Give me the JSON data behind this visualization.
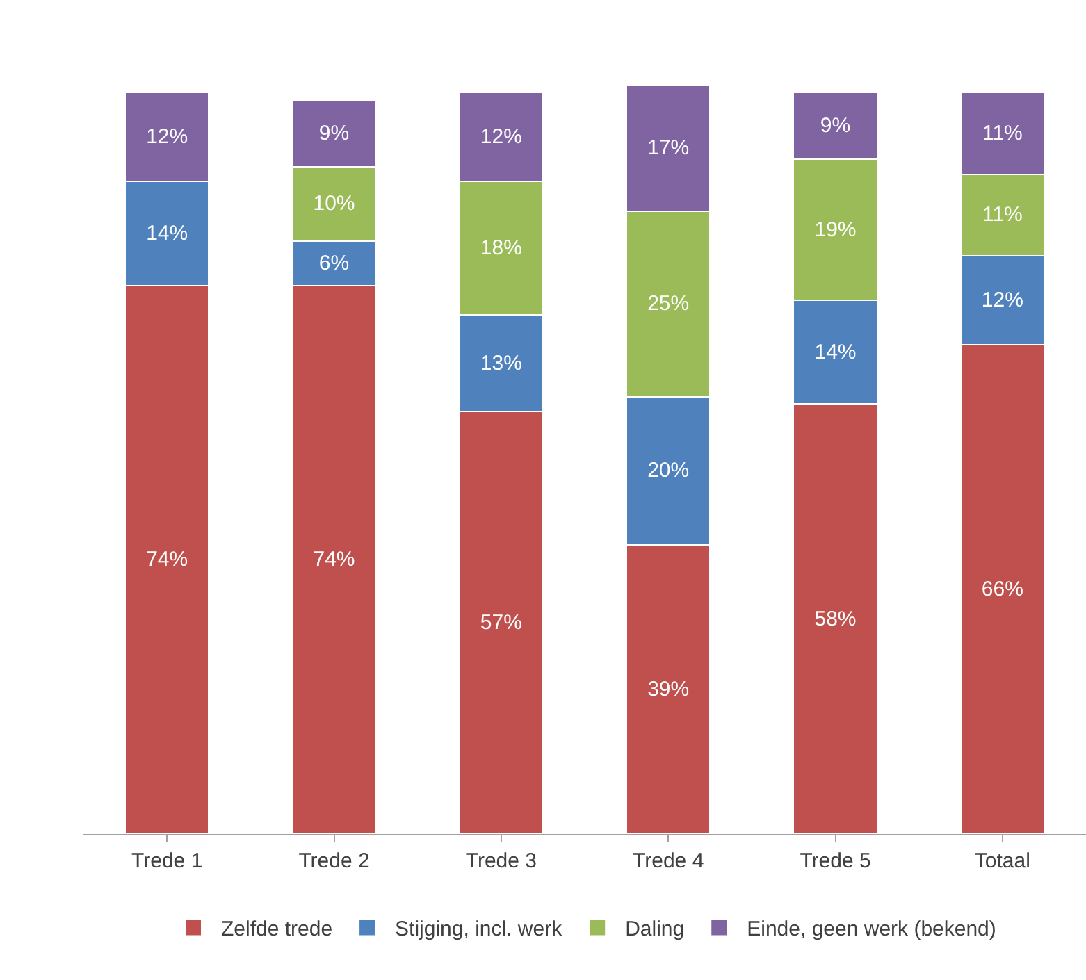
{
  "chart_data": {
    "type": "bar",
    "stacked": true,
    "categories": [
      "Trede 1",
      "Trede 2",
      "Trede 3",
      "Trede 4",
      "Trede 5",
      "Totaal"
    ],
    "series": [
      {
        "name": "Zelfde trede",
        "color": "#c0504d",
        "values": [
          74,
          74,
          57,
          39,
          58,
          66
        ],
        "value_labels": [
          "74%",
          "74%",
          "57%",
          "39%",
          "58%",
          "66%"
        ]
      },
      {
        "name": "Stijging, incl. werk",
        "color": "#4f81bd",
        "values": [
          14,
          6,
          13,
          20,
          14,
          12
        ],
        "value_labels": [
          "14%",
          "6%",
          "13%",
          "20%",
          "14%",
          "12%"
        ]
      },
      {
        "name": "Daling",
        "color": "#9bbb59",
        "values": [
          null,
          10,
          18,
          25,
          19,
          11
        ],
        "value_labels": [
          null,
          "10%",
          "18%",
          "25%",
          "19%",
          "11%"
        ]
      },
      {
        "name": "Einde, geen werk (bekend)",
        "color": "#8064a2",
        "values": [
          12,
          9,
          12,
          17,
          9,
          11
        ],
        "value_labels": [
          "12%",
          "9%",
          "12%",
          "17%",
          "9%",
          "11%"
        ]
      }
    ],
    "legend": "bottom",
    "grid": false
  }
}
